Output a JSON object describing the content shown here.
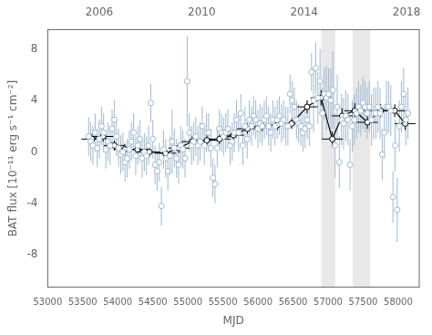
{
  "chart_data": {
    "type": "scatter",
    "xlabel": "MJD",
    "ylabel": "BAT flux [10⁻¹¹ erg s⁻¹ cm⁻²]",
    "xlim": [
      53000,
      58300
    ],
    "ylim": [
      -10.5,
      9.5
    ],
    "xticks": [
      53000,
      53500,
      54000,
      54500,
      55000,
      55500,
      56000,
      56500,
      57000,
      57500,
      58000
    ],
    "yticks": [
      -8,
      -4,
      0,
      4,
      8
    ],
    "x2lim": [
      53000,
      58300
    ],
    "x2ticks": [
      {
        "value": 53736,
        "label": "2006"
      },
      {
        "value": 55197,
        "label": "2010"
      },
      {
        "value": 56658,
        "label": "2014"
      },
      {
        "value": 58119,
        "label": "2018"
      }
    ],
    "grid": false,
    "shaded_regions": [
      {
        "x": [
          56900,
          57100
        ],
        "color": "#e8e8e8"
      },
      {
        "x": [
          57350,
          57600
        ],
        "color": "#e8e8e8"
      }
    ],
    "series": [
      {
        "type": "scatter",
        "color": "#a0b8d0",
        "marker": "open circle",
        "x": [
          53584,
          53614,
          53645,
          53676,
          53706,
          53736,
          53767,
          53797,
          53828,
          53858,
          53889,
          53919,
          53950,
          53980,
          54011,
          54042,
          54072,
          54103,
          54133,
          54164,
          54194,
          54225,
          54256,
          54286,
          54317,
          54347,
          54378,
          54408,
          54439,
          54470,
          54500,
          54531,
          54561,
          54592,
          54622,
          54653,
          54684,
          54714,
          54745,
          54775,
          54806,
          54837,
          54867,
          54898,
          54928,
          54959,
          54989,
          55020,
          55051,
          55081,
          55112,
          55142,
          55173,
          55204,
          55234,
          55265,
          55295,
          55326,
          55356,
          55387,
          55418,
          55448,
          55479,
          55509,
          55540,
          55570,
          55601,
          55632,
          55662,
          55693,
          55723,
          55754,
          55784,
          55815,
          55846,
          55876,
          55907,
          55937,
          55968,
          55998,
          56029,
          56060,
          56090,
          56121,
          56151,
          56182,
          56212,
          56243,
          56274,
          56304,
          56335,
          56365,
          56396,
          56426,
          56457,
          56488,
          56518,
          56549,
          56579,
          56610,
          56640,
          56671,
          56702,
          56732,
          56763,
          56793,
          56824,
          56854,
          56885,
          56916,
          56946,
          56977,
          57007,
          57038,
          57068,
          57099,
          57130,
          57160,
          57191,
          57221,
          57252,
          57283,
          57313,
          57344,
          57374,
          57405,
          57435,
          57466,
          57497,
          57527,
          57558,
          57588,
          57619,
          57649,
          57680,
          57711,
          57741,
          57772,
          57802,
          57833,
          57863,
          57894,
          57925,
          57955,
          57986,
          58016,
          58047,
          58077,
          58108,
          58139
        ],
        "values": [
          1.2,
          0.8,
          0.5,
          1.5,
          0.3,
          1.0,
          2.0,
          1.5,
          0.2,
          0.8,
          0.5,
          1.8,
          2.5,
          1.2,
          0.3,
          -0.2,
          0.0,
          -0.8,
          -0.5,
          0.2,
          0.8,
          1.5,
          -0.3,
          0.5,
          1.0,
          -0.5,
          0.0,
          -0.3,
          0.5,
          3.8,
          1.0,
          -1.0,
          -1.5,
          -0.8,
          -4.2,
          0.2,
          -0.5,
          -1.5,
          -0.3,
          0.8,
          0.3,
          -0.5,
          -1.0,
          0.5,
          0.2,
          -0.5,
          5.5,
          1.5,
          0.5,
          0.8,
          1.2,
          0.5,
          0.8,
          2.0,
          0.5,
          1.5,
          1.5,
          0.3,
          -2.0,
          -2.5,
          0.3,
          1.8,
          1.5,
          1.2,
          1.5,
          1.8,
          0.5,
          0.8,
          1.5,
          2.5,
          1.5,
          3.0,
          0.5,
          2.0,
          1.0,
          2.5,
          2.0,
          2.8,
          2.5,
          1.8,
          2.2,
          2.0,
          2.5,
          2.8,
          2.0,
          1.5,
          2.5,
          2.0,
          2.5,
          2.8,
          2.2,
          2.5,
          2.0,
          2.0,
          4.5,
          4.0,
          3.5,
          2.5,
          2.2,
          2.0,
          1.5,
          1.8,
          2.5,
          2.0,
          6.2,
          4.0,
          6.5,
          4.2,
          5.5,
          3.0,
          4.5,
          4.2,
          4.5,
          4.0,
          4.8,
          0.5,
          3.5,
          -0.8,
          2.5,
          2.2,
          2.8,
          2.5,
          -1.0,
          2.0,
          2.5,
          3.0,
          3.5,
          3.2,
          3.8,
          3.5,
          3.0,
          3.5,
          2.5,
          3.0,
          3.0,
          3.5,
          3.0,
          -0.2,
          1.5,
          3.5,
          3.5,
          3.2,
          -3.5,
          0.5,
          -4.5,
          2.0,
          3.5,
          4.5,
          2.5,
          3.0
        ],
        "yerr": [
          1.5,
          1.5,
          1.5,
          1.5,
          1.5,
          1.5,
          1.5,
          1.5,
          1.5,
          1.5,
          1.5,
          1.5,
          1.5,
          1.5,
          1.5,
          1.5,
          1.5,
          1.5,
          1.5,
          1.5,
          1.5,
          1.5,
          1.5,
          1.5,
          1.5,
          1.5,
          1.5,
          1.5,
          1.5,
          1.5,
          1.5,
          1.5,
          1.5,
          1.5,
          1.5,
          1.5,
          1.5,
          1.5,
          1.5,
          2.5,
          1.5,
          1.5,
          1.5,
          1.5,
          1.5,
          1.5,
          3.5,
          1.5,
          1.5,
          1.5,
          1.5,
          1.5,
          1.5,
          1.5,
          1.5,
          1.5,
          1.5,
          1.5,
          1.5,
          1.5,
          1.5,
          1.5,
          1.5,
          1.5,
          1.5,
          1.5,
          1.5,
          1.5,
          1.5,
          1.5,
          1.5,
          1.5,
          1.5,
          1.5,
          1.5,
          1.5,
          1.5,
          1.5,
          1.5,
          1.5,
          1.5,
          1.5,
          1.5,
          1.5,
          1.5,
          1.5,
          1.5,
          1.5,
          1.5,
          1.5,
          1.5,
          1.5,
          1.5,
          1.5,
          1.5,
          1.5,
          1.5,
          1.5,
          1.5,
          1.5,
          1.5,
          1.5,
          1.5,
          1.5,
          1.5,
          2.5,
          2.0,
          2.0,
          2.5,
          2.0,
          2.0,
          2.5,
          2.0,
          2.5,
          3.0,
          2.5,
          2.5,
          2.0,
          2.0,
          2.0,
          2.0,
          2.0,
          2.0,
          2.0,
          2.0,
          2.0,
          2.0,
          2.0,
          2.0,
          2.0,
          2.0,
          2.0,
          2.0,
          2.0,
          2.0,
          2.0,
          2.0,
          2.0,
          2.0,
          2.0,
          2.0,
          2.0,
          2.0,
          2.0,
          2.5,
          2.0,
          2.0,
          2.0,
          2.0,
          2.0
        ]
      },
      {
        "type": "line",
        "color": "#000000",
        "marker": "open circle",
        "x": [
          53630,
          53790,
          53950,
          54100,
          54280,
          54450,
          54680,
          54870,
          55060,
          55270,
          55450,
          55650,
          55850,
          56060,
          56280,
          56480,
          56700,
          56900,
          57060,
          57200,
          57380,
          57560,
          57750,
          57950,
          58100
        ],
        "values": [
          1.0,
          1.2,
          0.5,
          0.2,
          0.2,
          0.0,
          -0.1,
          0.3,
          0.8,
          0.9,
          1.0,
          1.3,
          1.8,
          2.0,
          2.1,
          2.2,
          3.5,
          4.2,
          1.0,
          2.8,
          3.2,
          2.3,
          3.2,
          3.2,
          2.2
        ],
        "xerr": [
          150,
          150,
          150,
          150,
          150,
          150,
          150,
          150,
          150,
          150,
          150,
          150,
          150,
          150,
          150,
          150,
          150,
          150,
          150,
          150,
          150,
          150,
          150,
          150,
          150
        ],
        "yerr": [
          0.4,
          0.4,
          0.4,
          0.4,
          0.4,
          0.4,
          0.4,
          0.4,
          0.4,
          0.4,
          0.4,
          0.4,
          0.4,
          0.4,
          0.4,
          0.4,
          0.5,
          0.6,
          0.6,
          0.6,
          0.6,
          0.5,
          0.5,
          0.5,
          0.5
        ]
      }
    ]
  }
}
